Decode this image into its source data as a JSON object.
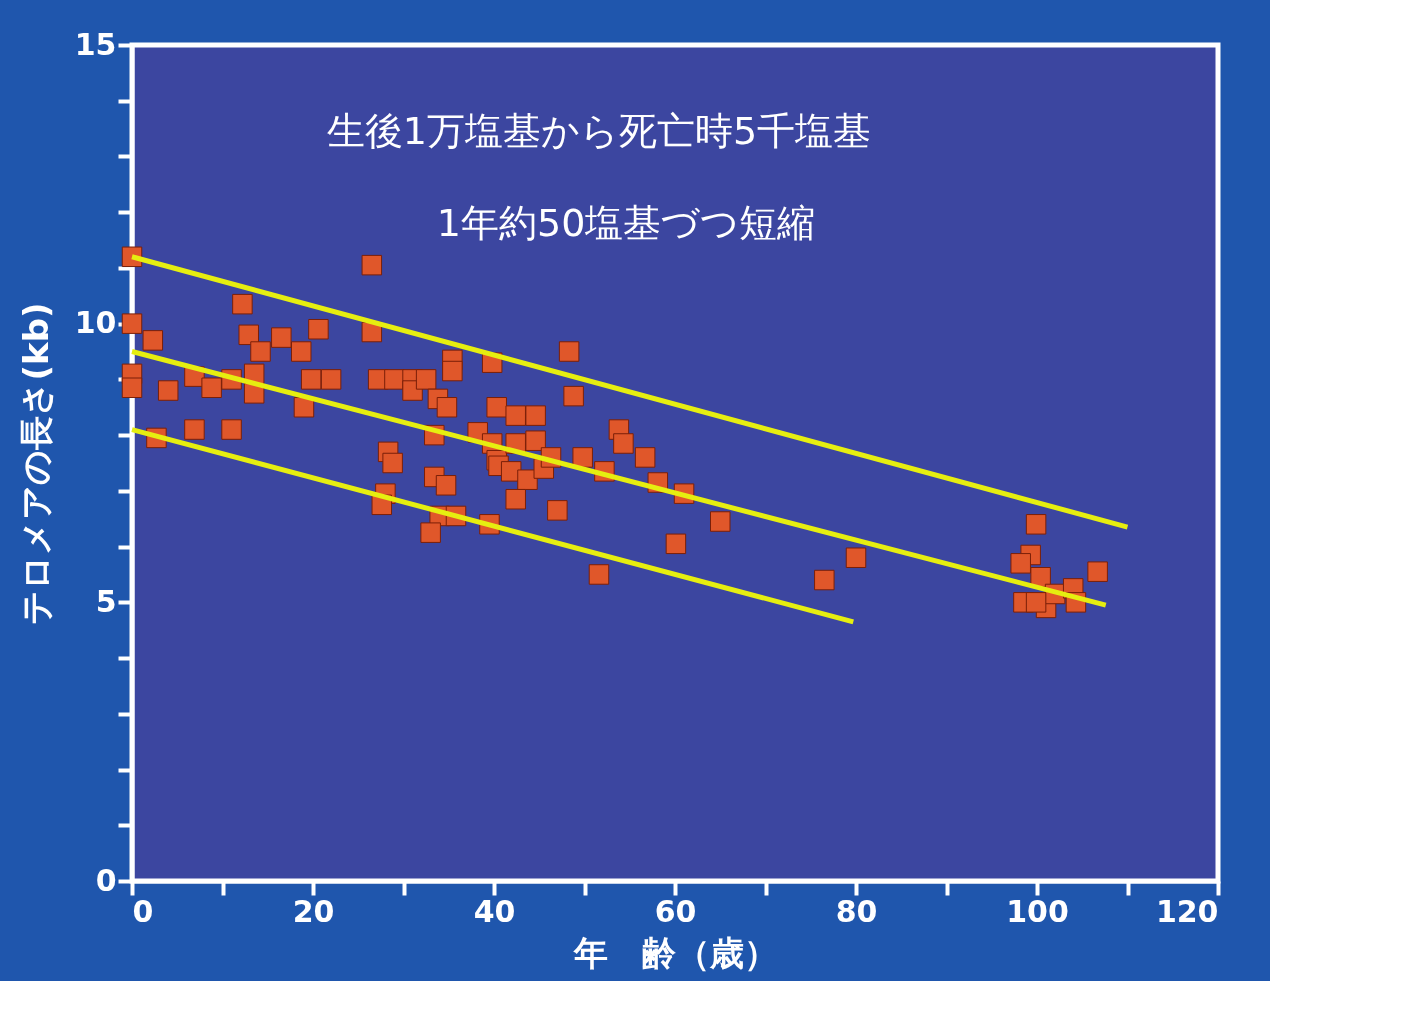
{
  "chart_data": {
    "type": "scatter",
    "xlabel": "年　齢（歳）",
    "ylabel": "テロメアの長さ(kb)",
    "annotations": [
      "生後1万塩基から死亡時5千塩基",
      "1年約50塩基づつ短縮"
    ],
    "xlim": [
      0,
      120
    ],
    "ylim": [
      0,
      15
    ],
    "xticks": [
      0,
      {
        "value": 10,
        "label": null
      },
      20,
      {
        "value": 30,
        "label": null
      },
      40,
      {
        "value": 50,
        "label": null
      },
      60,
      {
        "value": 70,
        "label": null
      },
      80,
      {
        "value": 90,
        "label": null
      },
      100,
      {
        "value": 110,
        "label": null
      },
      120
    ],
    "yticks": [
      0,
      {
        "value": 1,
        "label": null
      },
      {
        "value": 2,
        "label": null
      },
      {
        "value": 3,
        "label": null
      },
      {
        "value": 4,
        "label": null
      },
      5,
      {
        "value": 6,
        "label": null
      },
      {
        "value": 7,
        "label": null
      },
      {
        "value": 8,
        "label": null
      },
      {
        "value": 9,
        "label": null
      },
      10,
      {
        "value": 11,
        "label": null
      },
      {
        "value": 12,
        "label": null
      },
      {
        "value": 13,
        "label": null
      },
      {
        "value": 14,
        "label": null
      },
      15
    ],
    "grid": false,
    "series": [
      {
        "color": "#e0572a",
        "marker": "square",
        "x": [
          0,
          0,
          2.3,
          0,
          0,
          4,
          2.7,
          6.9,
          6.9,
          8.8,
          11,
          11,
          12.2,
          12.9,
          13.5,
          13.5,
          14.2,
          16.5,
          18.7,
          19,
          20.6,
          19.8,
          22,
          26.5,
          26.5,
          27.2,
          29,
          31,
          31,
          32.5,
          33.8,
          34.8,
          35.4,
          35.4,
          33.4,
          28.3,
          28.8,
          28,
          27.6,
          33.4,
          34.7,
          34,
          35.8,
          33,
          39.8,
          40.3,
          38.2,
          39.8,
          40.3,
          42.4,
          44.6,
          42.4,
          44.6,
          40.5,
          41.9,
          43.7,
          45.5,
          46.3,
          42.4,
          39.5,
          47,
          48.3,
          48.8,
          49.8,
          52.2,
          51.6,
          53.8,
          54.3,
          56.7,
          58.1,
          61,
          60.1,
          65,
          76.5,
          80,
          99.9,
          99.3,
          98.2,
          98.5,
          100.4,
          101,
          102,
          104,
          104.3,
          106.7,
          99.9
        ],
        "values": [
          11.2,
          10.0,
          9.7,
          9.1,
          8.85,
          8.8,
          7.95,
          8.1,
          9.05,
          8.85,
          8.1,
          9.0,
          10.35,
          9.8,
          9.1,
          8.75,
          9.5,
          9.75,
          9.5,
          8.5,
          9.9,
          9.0,
          9.0,
          11.05,
          9.85,
          9.0,
          9.0,
          9.0,
          8.8,
          9.0,
          8.65,
          8.5,
          9.35,
          9.15,
          8.0,
          7.7,
          7.5,
          6.95,
          6.75,
          7.25,
          7.1,
          6.55,
          6.55,
          6.25,
          9.3,
          8.5,
          8.05,
          7.85,
          7.55,
          8.35,
          8.35,
          7.85,
          7.9,
          7.45,
          7.35,
          7.2,
          7.4,
          7.6,
          6.85,
          6.4,
          6.65,
          9.5,
          8.7,
          7.6,
          7.35,
          5.5,
          8.1,
          7.85,
          7.6,
          7.15,
          6.95,
          6.05,
          6.45,
          5.4,
          5.8,
          6.4,
          5.85,
          5.7,
          5.0,
          5.45,
          4.9,
          5.15,
          5.25,
          5.0,
          5.55,
          5.0
        ]
      },
      {
        "type": "line",
        "color": "#e6ee10",
        "x": [
          0,
          110
        ],
        "values": [
          11.2,
          6.35
        ],
        "marker": "none",
        "line_style": "solid"
      },
      {
        "type": "line",
        "color": "#e6ee10",
        "x": [
          0,
          107.6
        ],
        "values": [
          9.5,
          4.95
        ],
        "marker": "none",
        "line_style": "solid"
      },
      {
        "type": "line",
        "color": "#e6ee10",
        "x": [
          0,
          79.7
        ],
        "values": [
          8.1,
          4.65
        ],
        "marker": "none",
        "line_style": "solid"
      }
    ]
  }
}
